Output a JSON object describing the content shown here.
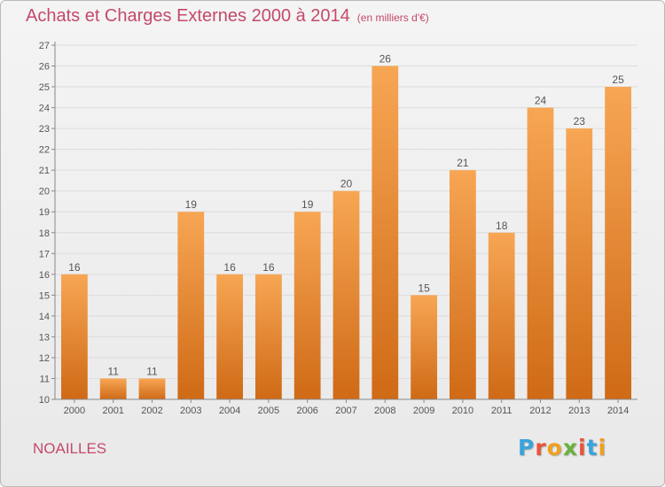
{
  "header": {
    "title": "Achats et Charges Externes 2000 à 2014",
    "unit": "(en milliers d'€)"
  },
  "commune": "NOAILLES",
  "logo": {
    "letters": [
      "P",
      "r",
      "o",
      "x",
      "i",
      "t",
      "i"
    ],
    "colors": [
      "#3aa3dc",
      "#e8553b",
      "#f0a020",
      "#6ab23c",
      "#e8553b",
      "#3aa3dc",
      "#f0a020"
    ]
  },
  "colors": {
    "bar_top": "#f7a654",
    "bar_bottom": "#cf6a16",
    "grid": "#dcdcdc",
    "axis": "#888888",
    "text": "#555555"
  },
  "chart_data": {
    "type": "bar",
    "title": "Achats et Charges Externes 2000 à 2014",
    "subtitle": "(en milliers d'€)",
    "categories": [
      "2000",
      "2001",
      "2002",
      "2003",
      "2004",
      "2005",
      "2006",
      "2007",
      "2008",
      "2009",
      "2010",
      "2011",
      "2012",
      "2013",
      "2014"
    ],
    "values": [
      16,
      11,
      11,
      19,
      16,
      16,
      19,
      20,
      26,
      15,
      21,
      18,
      24,
      23,
      25
    ],
    "ylim": [
      10,
      27
    ],
    "yticks": [
      10,
      11,
      12,
      13,
      14,
      15,
      16,
      17,
      18,
      19,
      20,
      21,
      22,
      23,
      24,
      25,
      26,
      27
    ],
    "grid": true,
    "data_labels": true
  }
}
